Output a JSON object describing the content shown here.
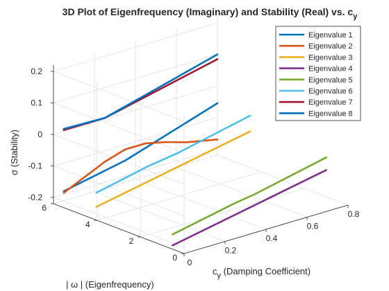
{
  "chart_data": {
    "type": "line",
    "title": "3D Plot of Eigenfrequency (Imaginary) and Stability (Real) vs. c",
    "title_sub": "y",
    "xlabel": "c",
    "xlabel_sub": "y",
    "xlabel_rest": " (Damping Coefficient)",
    "ylabel": "| ω | (Eigenfrequency)",
    "zlabel": "σ (Stability)",
    "x_ticks": [
      "0",
      "0.2",
      "0.4",
      "0.6",
      "0.8"
    ],
    "y_ticks": [
      "0",
      "2",
      "4",
      "6"
    ],
    "z_ticks": [
      "-0.2",
      "-0.1",
      "0",
      "0.1",
      "0.2"
    ],
    "xlim": [
      0,
      0.8
    ],
    "ylim": [
      0,
      6
    ],
    "zlim": [
      -0.22,
      0.22
    ],
    "grid": true,
    "legend_position": "top-right",
    "series": [
      {
        "name": "Eigenvalue 1",
        "color": "#0072BD",
        "cy": [
          0.05,
          0.35,
          0.8
        ],
        "omega": [
          6.0,
          6.0,
          6.0
        ],
        "sigma": [
          -0.19,
          -0.15,
          -0.055
        ]
      },
      {
        "name": "Eigenvalue 2",
        "color": "#D95319",
        "cy": [
          0.05,
          0.15,
          0.25,
          0.35,
          0.45,
          0.55,
          0.65,
          0.8
        ],
        "omega": [
          6.0,
          6.0,
          6.0,
          6.0,
          6.0,
          6.0,
          6.0,
          6.0
        ],
        "sigma": [
          -0.195,
          -0.165,
          -0.135,
          -0.115,
          -0.115,
          -0.13,
          -0.15,
          -0.17
        ]
      },
      {
        "name": "Eigenvalue 3",
        "color": "#EDB120",
        "cy": [
          0.05,
          0.8
        ],
        "omega": [
          4.5,
          4.5
        ],
        "sigma": [
          -0.2,
          -0.105
        ]
      },
      {
        "name": "Eigenvalue 4",
        "color": "#7E2F8E",
        "cy": [
          0.05,
          0.8
        ],
        "omega": [
          1.0,
          1.0
        ],
        "sigma": [
          -0.23,
          -0.135
        ]
      },
      {
        "name": "Eigenvalue 5",
        "color": "#77AC30",
        "cy": [
          0.05,
          0.35,
          0.45,
          0.8
        ],
        "omega": [
          1.0,
          1.0,
          1.0,
          1.0
        ],
        "sigma": [
          -0.195,
          -0.155,
          -0.145,
          -0.095
        ]
      },
      {
        "name": "Eigenvalue 6",
        "color": "#4DBEEE",
        "cy": [
          0.05,
          0.3,
          0.45,
          0.8
        ],
        "omega": [
          4.5,
          4.5,
          4.5,
          4.5
        ],
        "sigma": [
          -0.155,
          -0.12,
          -0.105,
          -0.055
        ]
      },
      {
        "name": "Eigenvalue 7",
        "color": "#A2142F",
        "cy": [
          0.05,
          0.25,
          0.8
        ],
        "omega": [
          6.0,
          6.0,
          6.0
        ],
        "sigma": [
          0.004,
          0.004,
          0.085
        ]
      },
      {
        "name": "Eigenvalue 8",
        "color": "#0072BD",
        "cy": [
          0.05,
          0.25,
          0.8
        ],
        "omega": [
          6.0,
          6.0,
          6.0
        ],
        "sigma": [
          0.008,
          0.004,
          0.1
        ]
      }
    ]
  }
}
